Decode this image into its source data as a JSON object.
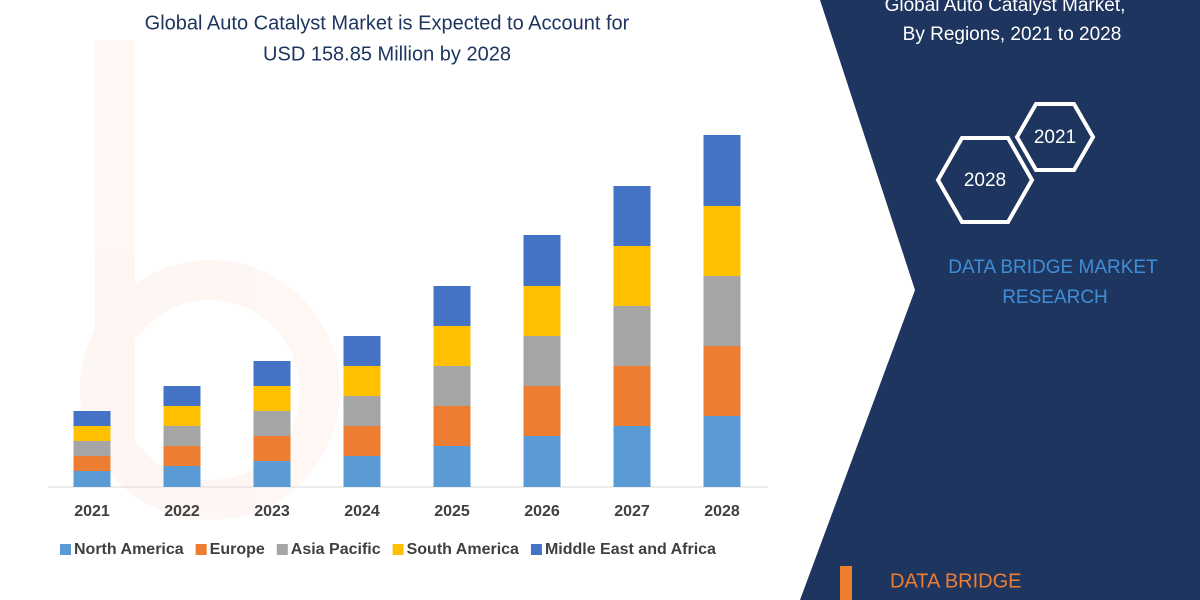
{
  "chart_data": {
    "type": "stacked_bar",
    "title": [
      "Global Auto Catalyst Market is Expected to Account for",
      "USD 158.85 Million by 2028"
    ],
    "categories": [
      "2021",
      "2022",
      "2023",
      "2024",
      "2025",
      "2026",
      "2027",
      "2028"
    ],
    "series": [
      {
        "name": "North America",
        "color": "#5b9bd5",
        "values": [
          16,
          21,
          26,
          31,
          41,
          51,
          61,
          71
        ]
      },
      {
        "name": "Europe",
        "color": "#ed7d31",
        "values": [
          15,
          20,
          25,
          30,
          40,
          50,
          60,
          70
        ]
      },
      {
        "name": "Asia Pacific",
        "color": "#a5a5a5",
        "values": [
          15,
          20,
          25,
          30,
          40,
          50,
          60,
          70
        ]
      },
      {
        "name": "South America",
        "color": "#ffc000",
        "values": [
          15,
          20,
          25,
          30,
          40,
          50,
          60,
          70
        ]
      },
      {
        "name": "Middle East and Africa",
        "color": "#4472c4",
        "values": [
          15,
          20,
          25,
          30,
          40,
          51,
          60,
          71
        ]
      }
    ]
  },
  "side_panel": {
    "title": [
      "Global Auto Catalyst Market,",
      "By Regions,  2021 to 2028"
    ],
    "badges": [
      "2021",
      "2028"
    ],
    "brand": [
      "DATA BRIDGE MARKET",
      "RESEARCH"
    ],
    "logo": "DATA BRIDGE"
  }
}
